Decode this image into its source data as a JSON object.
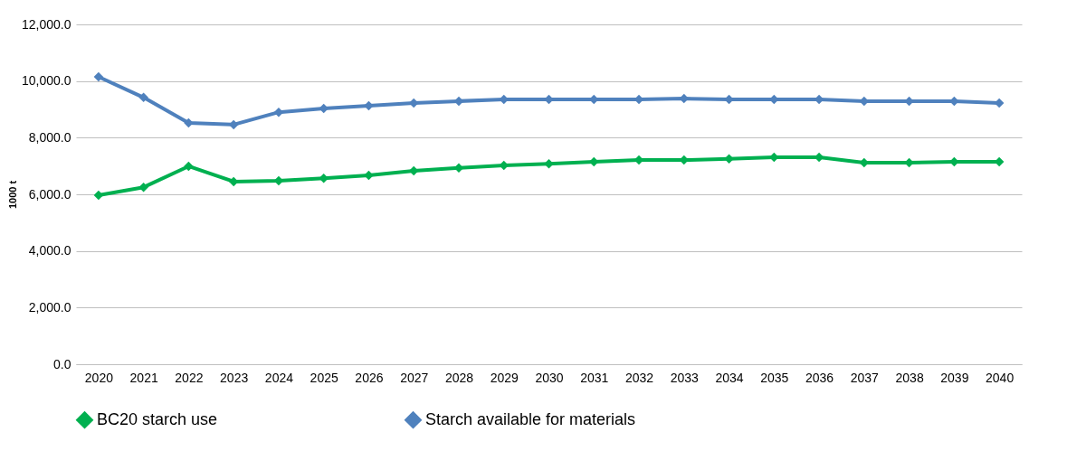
{
  "chart_data": {
    "type": "line",
    "ylabel": "1000 t",
    "categories": [
      "2020",
      "2021",
      "2022",
      "2023",
      "2024",
      "2025",
      "2026",
      "2027",
      "2028",
      "2029",
      "2030",
      "2031",
      "2032",
      "2033",
      "2034",
      "2035",
      "2036",
      "2037",
      "2038",
      "2039",
      "2040"
    ],
    "series": [
      {
        "name": "BC20 starch use",
        "color": "#00b050",
        "values": [
          5970,
          6250,
          6990,
          6450,
          6480,
          6570,
          6670,
          6830,
          6930,
          7020,
          7080,
          7150,
          7210,
          7210,
          7250,
          7310,
          7310,
          7120,
          7120,
          7150,
          7150
        ]
      },
      {
        "name": "Starch available for materials",
        "color": "#4f81bd",
        "values": [
          10150,
          9420,
          8520,
          8460,
          8900,
          9030,
          9130,
          9220,
          9290,
          9350,
          9350,
          9350,
          9350,
          9380,
          9350,
          9350,
          9350,
          9290,
          9290,
          9290,
          9220
        ]
      }
    ],
    "ylim": [
      0,
      12000
    ],
    "yticks": [
      {
        "value": 0,
        "label": "0.0"
      },
      {
        "value": 2000,
        "label": "2,000.0"
      },
      {
        "value": 4000,
        "label": "4,000.0"
      },
      {
        "value": 6000,
        "label": "6,000.0"
      },
      {
        "value": 8000,
        "label": "8,000.0"
      },
      {
        "value": 10000,
        "label": "10,000.0"
      },
      {
        "value": 12000,
        "label": "12,000.0"
      }
    ],
    "grid": "y",
    "legend": "bottom",
    "marker": "diamond",
    "line_style": "solid"
  }
}
